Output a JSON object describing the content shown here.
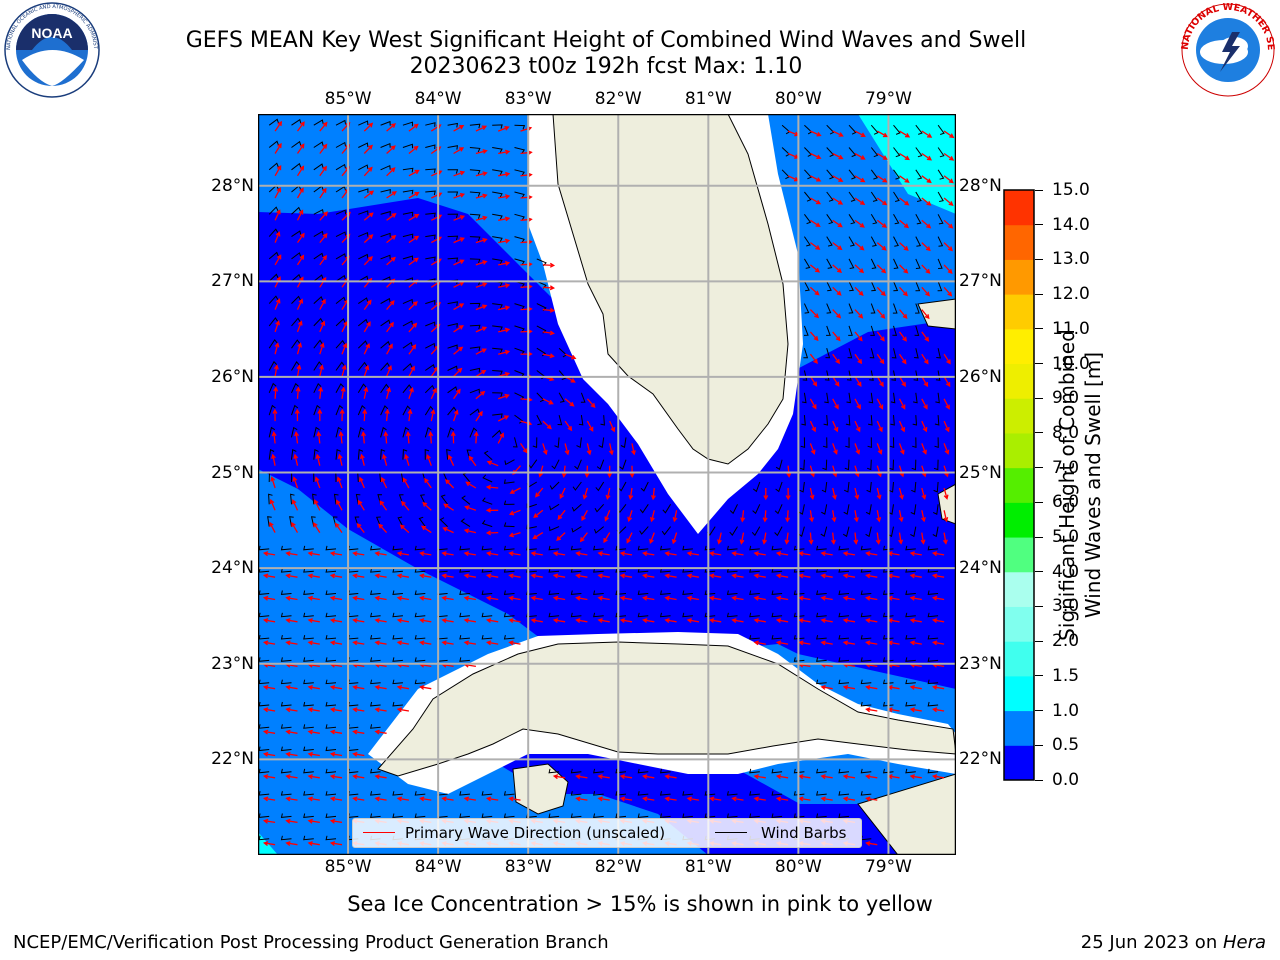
{
  "title": {
    "line1": "GEFS MEAN Key West Significant Height of Combined Wind Waves and Swell",
    "line2": "20230623 t00z 192h fcst   Max: 1.10"
  },
  "logos": {
    "noaa": {
      "text": "NOAA",
      "ring_text": "NATIONAL OCEANIC AND ATMOSPHERIC ADMINISTRATION · U.S. DEPARTMENT OF COMMERCE"
    },
    "nws": {
      "ring_text": "NATIONAL WEATHER SERVICE"
    }
  },
  "map": {
    "lon_labels": [
      "85°W",
      "84°W",
      "83°W",
      "82°W",
      "81°W",
      "80°W",
      "79°W"
    ],
    "lat_labels": [
      "28°N",
      "27°N",
      "26°N",
      "25°N",
      "24°N",
      "23°N",
      "22°N"
    ],
    "lon_range": [
      -86.0,
      -78.25
    ],
    "lat_range": [
      21.0,
      28.75
    ],
    "gridlines": true,
    "land_color": "#eeeedd",
    "wave_arrow_color": "#ff0000",
    "barb_color": "#000000"
  },
  "legend": {
    "placement": "lower-center",
    "primary_wave": "Primary Wave Direction (unscaled)",
    "wind_barbs": "Wind Barbs"
  },
  "colorbar": {
    "label_line1": "Significant Height of Combined",
    "label_line2": "Wind Waves and Swell [m]",
    "ticks": [
      "0.0",
      "0.5",
      "1.0",
      "1.5",
      "2.0",
      "3.0",
      "4.0",
      "5.0",
      "6.0",
      "7.0",
      "8.0",
      "9.0",
      "10.0",
      "11.0",
      "12.0",
      "13.0",
      "14.0",
      "15.0"
    ],
    "colors": [
      "#0000ff",
      "#0080ff",
      "#00ffff",
      "#40ffee",
      "#80ffee",
      "#aaffee",
      "#50ff80",
      "#00ee00",
      "#55ee00",
      "#aaee00",
      "#ccee00",
      "#eeee00",
      "#ffee00",
      "#ffcc00",
      "#ff9900",
      "#ff6600",
      "#ff3300",
      "#ff0000"
    ]
  },
  "footer": {
    "note": "Sea Ice Concentration > 15% is shown in pink to yellow",
    "left": "NCEP/EMC/Verification Post Processing Product Generation Branch",
    "right_prefix": "25 Jun 2023 on ",
    "right_host": "Hera"
  }
}
